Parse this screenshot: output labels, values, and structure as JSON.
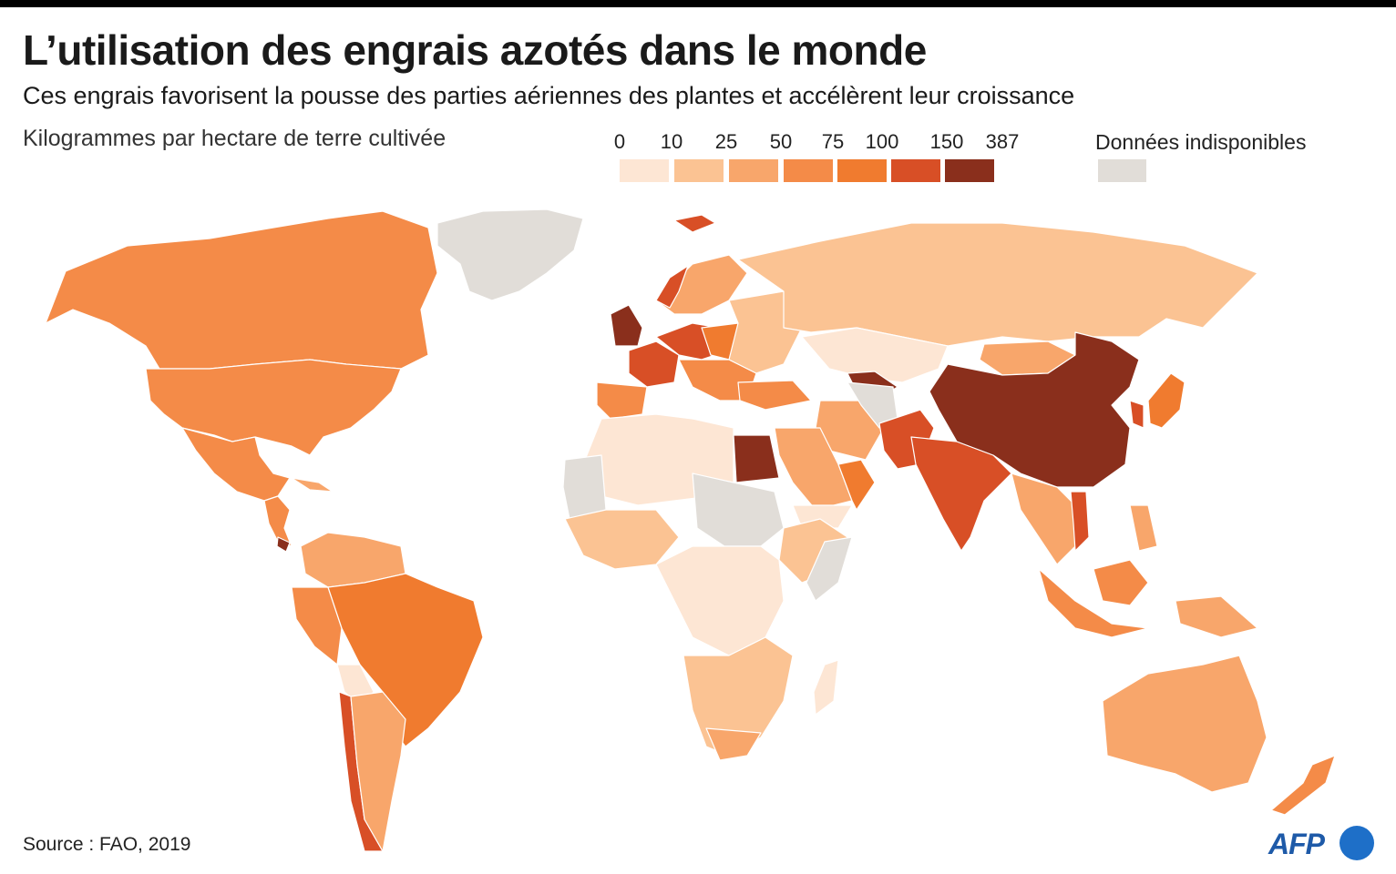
{
  "title": "L’utilisation des engrais azotés dans le monde",
  "subtitle": "Ces engrais favorisent la pousse des parties aériennes des plantes et accélèrent leur croissance",
  "unit_label": "Kilogrammes par hectare de terre cultivée",
  "legend": {
    "breaks": [
      "0",
      "10",
      "25",
      "50",
      "75",
      "100",
      "150",
      "387"
    ],
    "colors": [
      "#fde6d4",
      "#fbc393",
      "#f8a66b",
      "#f48b48",
      "#f07b2f",
      "#d84f26",
      "#8a2f1c"
    ],
    "no_data_label": "Données indisponibles",
    "no_data_color": "#e1ddd8"
  },
  "source": "Source : FAO, 2019",
  "logo_text": "AFP"
}
